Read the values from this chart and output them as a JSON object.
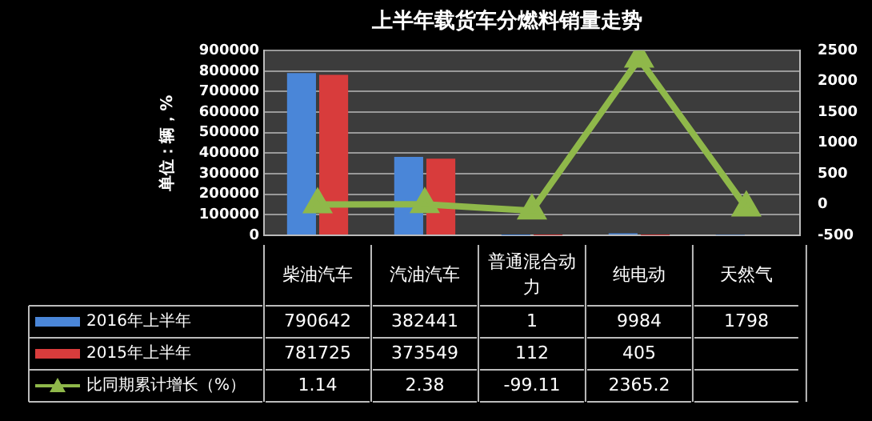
{
  "chart_data": {
    "type": "bar",
    "title": "上半年载货车分燃料销量走势",
    "ylabel": "单位：辆，%",
    "categories": [
      "柴油汽车",
      "汽油汽车",
      "普通混合动力",
      "纯电动",
      "天然气"
    ],
    "series": [
      {
        "name": "2016年上半年",
        "color": "#4a86d8",
        "values": [
          790642,
          382441,
          1,
          9984,
          1798
        ],
        "value_labels": [
          "790642",
          "382441",
          "1",
          "9984",
          "1798"
        ]
      },
      {
        "name": "2015年上半年",
        "color": "#d83c3c",
        "values": [
          781725,
          373549,
          112,
          405,
          null
        ],
        "value_labels": [
          "781725",
          "373549",
          "112",
          "405",
          null
        ]
      },
      {
        "name": "比同期累计增长（%）",
        "type": "line",
        "axis": "y2",
        "color": "#8fb84a",
        "marker": "triangle",
        "values": [
          1.14,
          2.38,
          -99.11,
          2365.2,
          -50
        ],
        "value_labels": [
          "1.14",
          "2.38",
          "-99.11",
          "2365.2",
          null
        ]
      }
    ],
    "ylim": [
      0,
      900000
    ],
    "yticks": [
      0,
      100000,
      200000,
      300000,
      400000,
      500000,
      600000,
      700000,
      800000,
      900000
    ],
    "y2lim": [
      -500,
      2500
    ],
    "y2ticks": [
      -500,
      0,
      500,
      1000,
      1500,
      2000,
      2500
    ],
    "grid": "y",
    "legend": "bottom"
  }
}
